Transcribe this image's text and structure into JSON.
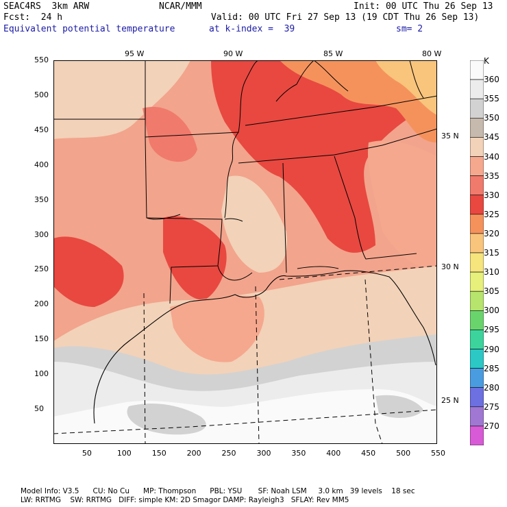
{
  "header": {
    "model": "SEAC4RS  3km ARW",
    "org": "NCAR/MMM",
    "init": "Init: 00 UTC Thu 26 Sep 13",
    "fcst": "Fcst:  24 h",
    "valid": "Valid: 00 UTC Fri 27 Sep 13 (19 CDT Thu 26 Sep 13)",
    "field": "Equivalent potential temperature",
    "level": "at k-index =  39",
    "smooth": "sm= 2"
  },
  "axes": {
    "x_ticks": [
      "50",
      "100",
      "150",
      "200",
      "250",
      "300",
      "350",
      "400",
      "450",
      "500",
      "550"
    ],
    "y_ticks": [
      "550",
      "500",
      "450",
      "400",
      "350",
      "300",
      "250",
      "200",
      "150",
      "100",
      "50"
    ],
    "lon_labels": [
      "95 W",
      "90 W",
      "85 W",
      "80 W"
    ],
    "lat_labels": [
      "35 N",
      "30 N",
      "25 N"
    ]
  },
  "legend": {
    "unit": "K",
    "levels": [
      {
        "label": "360",
        "color": "#fafafa"
      },
      {
        "label": "355",
        "color": "#ececec"
      },
      {
        "label": "350",
        "color": "#d2d2d2"
      },
      {
        "label": "345",
        "color": "#c6b9ad"
      },
      {
        "label": "340",
        "color": "#f2d2b8"
      },
      {
        "label": "335",
        "color": "#f5a88e"
      },
      {
        "label": "330",
        "color": "#f07a6c"
      },
      {
        "label": "325",
        "color": "#e84840"
      },
      {
        "label": "320",
        "color": "#f5925c"
      },
      {
        "label": "315",
        "color": "#f9c47c"
      },
      {
        "label": "310",
        "color": "#f6e47c"
      },
      {
        "label": "305",
        "color": "#e6f07a"
      },
      {
        "label": "300",
        "color": "#b6e46c"
      },
      {
        "label": "295",
        "color": "#6ad46c"
      },
      {
        "label": "290",
        "color": "#3cd49c"
      },
      {
        "label": "285",
        "color": "#2cc8c6"
      },
      {
        "label": "280",
        "color": "#4a9ce0"
      },
      {
        "label": "275",
        "color": "#6c70e0"
      },
      {
        "label": "270",
        "color": "#a078d4"
      },
      {
        "label": "",
        "color": "#d85ad6"
      }
    ]
  },
  "footer": {
    "line1": "Model Info: V3.5      CU: No Cu      MP: Thompson      PBL: YSU       SF: Noah LSM     3.0 km   39 levels    18 sec",
    "line2": "LW: RRTMG    SW: RRTMG   DIFF: simple KM: 2D Smagor DAMP: Rayleigh3   SFLAY: Rev MM5"
  }
}
